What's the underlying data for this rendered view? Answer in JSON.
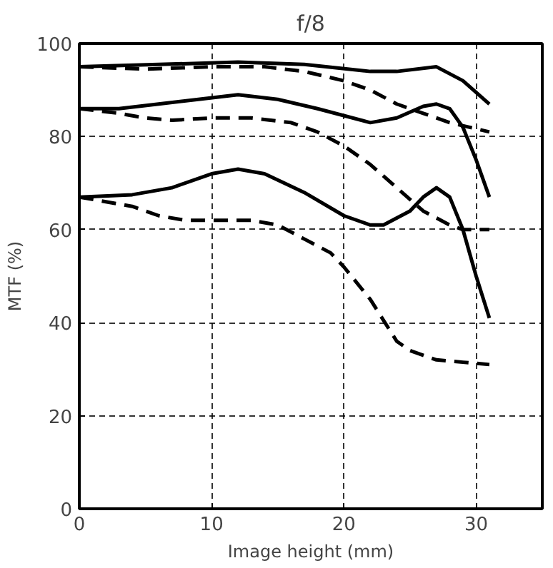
{
  "chart_data": {
    "type": "line",
    "title": "f/8",
    "xlabel": "Image height (mm)",
    "ylabel": "MTF (%)",
    "xlim": [
      0,
      35
    ],
    "xticks": [
      0,
      10,
      20,
      30
    ],
    "ylim": [
      0,
      100
    ],
    "yticks": [
      0,
      20,
      40,
      60,
      80,
      100
    ],
    "grid": true,
    "marker": "none",
    "series": [
      {
        "color": "#000000",
        "line_style": "solid",
        "x": [
          0,
          6,
          12,
          17,
          22,
          24,
          27,
          29,
          31
        ],
        "values": [
          95,
          95.5,
          96,
          95.5,
          94,
          94,
          95,
          92,
          87
        ]
      },
      {
        "color": "#000000",
        "line_style": "dashed",
        "x": [
          0,
          5,
          10,
          14,
          17,
          20,
          22,
          24,
          26,
          28,
          31
        ],
        "values": [
          95,
          94.5,
          95,
          95,
          94,
          92,
          90,
          87,
          85,
          83,
          81
        ]
      },
      {
        "color": "#000000",
        "line_style": "solid",
        "x": [
          0,
          3,
          6,
          9,
          12,
          15,
          18,
          22,
          24,
          26,
          27,
          28,
          29,
          30,
          31
        ],
        "values": [
          86,
          86,
          87,
          88,
          89,
          88,
          86,
          83,
          84,
          86.5,
          87,
          86,
          82,
          75,
          67
        ]
      },
      {
        "color": "#000000",
        "line_style": "dashed",
        "x": [
          0,
          3,
          5,
          7,
          10,
          13,
          16,
          18,
          20,
          22,
          24,
          26,
          28,
          29,
          31
        ],
        "values": [
          86,
          85,
          84,
          83.5,
          84,
          84,
          83,
          81,
          78,
          74,
          69,
          64,
          61,
          60,
          60
        ]
      },
      {
        "color": "#000000",
        "line_style": "solid",
        "x": [
          0,
          4,
          7,
          10,
          12,
          14,
          17,
          20,
          22,
          23,
          25,
          26,
          27,
          28,
          29,
          30,
          31
        ],
        "values": [
          67,
          67.5,
          69,
          72,
          73,
          72,
          68,
          63,
          61,
          61,
          64,
          67,
          69,
          67,
          60,
          50,
          41
        ]
      },
      {
        "color": "#000000",
        "line_style": "dashed",
        "x": [
          0,
          4,
          6,
          8,
          10,
          13,
          15,
          17,
          19,
          20,
          22,
          24,
          25,
          27,
          29,
          31
        ],
        "values": [
          67,
          65,
          63,
          62,
          62,
          62,
          61,
          58,
          55,
          52,
          45,
          36,
          34,
          32,
          31.5,
          31
        ]
      }
    ]
  }
}
